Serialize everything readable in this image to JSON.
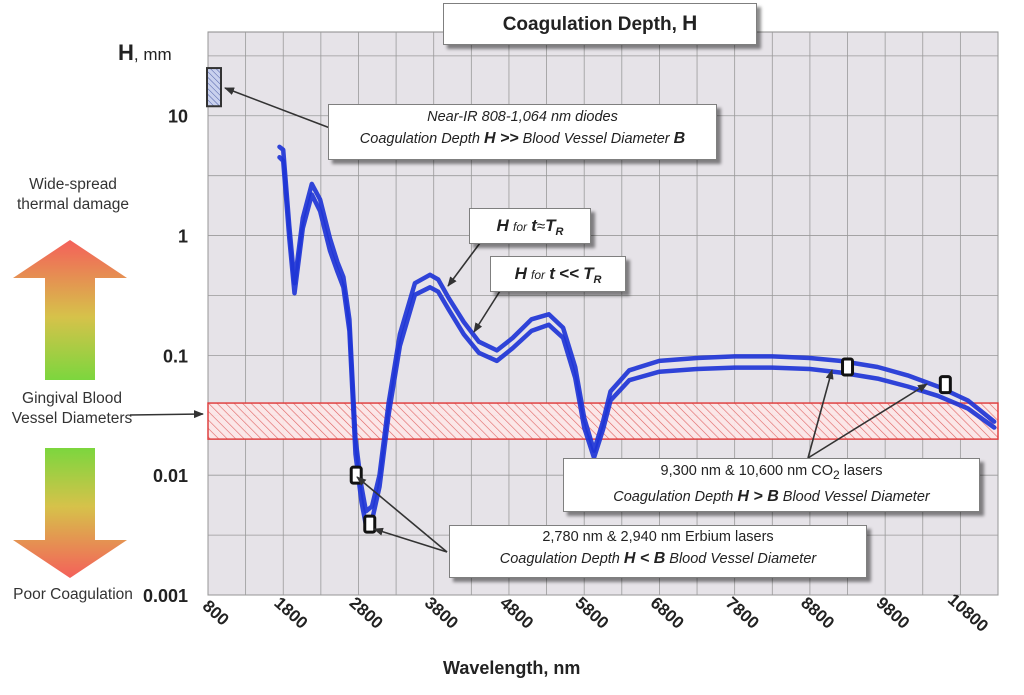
{
  "chart_data": {
    "type": "line",
    "title": "Coagulation Depth, H",
    "title_text": "Coagulation Depth,",
    "title_symbol": "H",
    "ylabel_symbol": "H",
    "ylabel_unit": ", mm",
    "xlabel": "Wavelength, nm",
    "xlim": [
      800,
      11300
    ],
    "ylim": [
      0.001,
      50
    ],
    "y_scale": "log",
    "x_ticks": [
      800,
      1800,
      2800,
      3800,
      4800,
      5800,
      6800,
      7800,
      8800,
      9800,
      10800
    ],
    "y_ticks": [
      {
        "value": 10,
        "label": "10"
      },
      {
        "value": 1,
        "label": "1"
      },
      {
        "value": 0.1,
        "label": "0.1"
      },
      {
        "value": 0.01,
        "label": "0.01"
      },
      {
        "value": 0.001,
        "label": "0.001"
      }
    ],
    "grid": true,
    "series": [
      {
        "name": "H for t ≈ T_R",
        "color": "#1f35d6",
        "x": [
          1750,
          1800,
          1880,
          1950,
          2060,
          2180,
          2290,
          2420,
          2520,
          2600,
          2680,
          2760,
          2840,
          2900,
          2980,
          3080,
          3200,
          3350,
          3550,
          3750,
          3860,
          4000,
          4200,
          4400,
          4640,
          4850,
          5100,
          5330,
          5520,
          5680,
          5800,
          5930,
          6050,
          6150,
          6400,
          6800,
          7300,
          7800,
          8300,
          8800,
          9200,
          9700,
          10100,
          10500,
          10900,
          11250
        ],
        "values": [
          5.5,
          5.2,
          1.2,
          0.4,
          1.4,
          2.7,
          2.0,
          0.95,
          0.6,
          0.45,
          0.2,
          0.02,
          0.008,
          0.005,
          0.0055,
          0.01,
          0.04,
          0.15,
          0.4,
          0.47,
          0.43,
          0.3,
          0.19,
          0.13,
          0.11,
          0.14,
          0.2,
          0.22,
          0.17,
          0.08,
          0.03,
          0.016,
          0.028,
          0.05,
          0.075,
          0.09,
          0.095,
          0.098,
          0.098,
          0.095,
          0.09,
          0.08,
          0.068,
          0.055,
          0.042,
          0.028
        ]
      },
      {
        "name": "H for t << T_R",
        "color": "#1f35d6",
        "x": [
          1750,
          1800,
          1880,
          1950,
          2060,
          2180,
          2290,
          2420,
          2520,
          2600,
          2680,
          2760,
          2840,
          2900,
          2980,
          3080,
          3200,
          3350,
          3550,
          3750,
          3860,
          4000,
          4200,
          4400,
          4640,
          4850,
          5100,
          5330,
          5520,
          5680,
          5800,
          5930,
          6050,
          6150,
          6400,
          6800,
          7300,
          7800,
          8300,
          8800,
          9200,
          9700,
          10100,
          10500,
          10900,
          11250
        ],
        "values": [
          4.5,
          4.2,
          0.95,
          0.33,
          1.15,
          2.2,
          1.6,
          0.75,
          0.5,
          0.37,
          0.16,
          0.015,
          0.006,
          0.0038,
          0.0042,
          0.008,
          0.032,
          0.12,
          0.32,
          0.37,
          0.34,
          0.24,
          0.15,
          0.105,
          0.09,
          0.115,
          0.16,
          0.18,
          0.14,
          0.065,
          0.025,
          0.014,
          0.024,
          0.042,
          0.062,
          0.073,
          0.077,
          0.079,
          0.079,
          0.077,
          0.072,
          0.064,
          0.055,
          0.046,
          0.036,
          0.025
        ]
      }
    ],
    "band": {
      "name": "Gingival Blood Vessel Diameters",
      "y_range": [
        0.02,
        0.04
      ],
      "color": "#e03a3a"
    },
    "nir_marker": {
      "x": 800,
      "y_range": [
        12,
        25
      ]
    },
    "markers": [
      {
        "x": 2770,
        "y": 0.01
      },
      {
        "x": 2950,
        "y": 0.0039
      },
      {
        "x": 9300,
        "y": 0.08
      },
      {
        "x": 10600,
        "y": 0.057
      }
    ],
    "annotations": {
      "nir": {
        "line1": "Near-IR 808-1,064 nm diodes",
        "line2_pre": "Coagulation Depth ",
        "line2_sym": "H >>",
        "line2_mid": " Blood Vessel Diameter ",
        "line2_end": "B"
      },
      "tr": {
        "h": "H",
        "for": "for",
        "t": "t",
        "rel": "≈",
        "T": "T",
        "sub": "R"
      },
      "tll": {
        "h": "H",
        "for": "for",
        "t": "t",
        "rel": "<<",
        "T": "T",
        "sub": "R"
      },
      "co2": {
        "line1_a": "9,300 nm & 10,600 nm CO",
        "line1_sub": "2",
        "line1_b": " lasers",
        "line2_pre": "Coagulation Depth ",
        "line2_sym": "H > B",
        "line2_end": " Blood Vessel Diameter"
      },
      "erbium": {
        "line1": "2,780 nm & 2,940 nm Erbium lasers",
        "line2_pre": "Coagulation Depth ",
        "line2_sym": "H < B",
        "line2_end": " Blood Vessel Diameter"
      }
    },
    "side_labels": {
      "wide": "Wide-spread thermal damage",
      "gingival": "Gingival Blood Vessel Diameters",
      "poor": "Poor Coagulation"
    }
  }
}
